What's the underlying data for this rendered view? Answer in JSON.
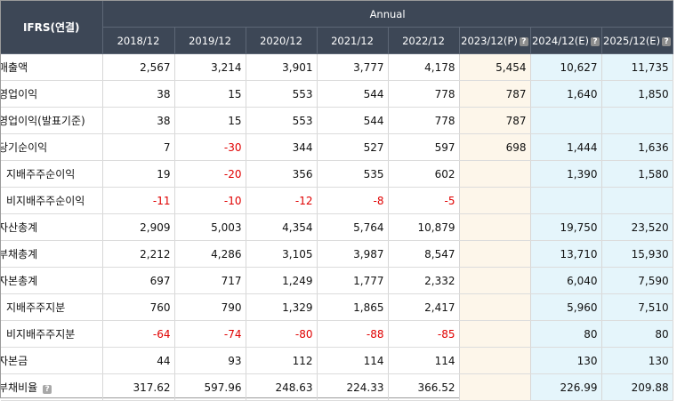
{
  "header": {
    "corner_label": "IFRS(연결)",
    "group_label": "Annual",
    "periods": [
      "2018/12",
      "2019/12",
      "2020/12",
      "2021/12",
      "2022/12",
      "2023/12(P)",
      "2024/12(E)",
      "2025/12(E)"
    ],
    "help_glyph": "?"
  },
  "rows": [
    {
      "label": "매출액",
      "values": [
        "2,567",
        "3,214",
        "3,901",
        "3,777",
        "4,178",
        "5,454",
        "10,627",
        "11,735"
      ]
    },
    {
      "label": "영업이익",
      "values": [
        "38",
        "15",
        "553",
        "544",
        "778",
        "787",
        "1,640",
        "1,850"
      ]
    },
    {
      "label": "영업이익(발표기준)",
      "values": [
        "38",
        "15",
        "553",
        "544",
        "778",
        "787",
        "",
        ""
      ]
    },
    {
      "label": "당기순이익",
      "values": [
        "7",
        "-30",
        "344",
        "527",
        "597",
        "698",
        "1,444",
        "1,636"
      ]
    },
    {
      "label": "지배주주순이익",
      "values": [
        "19",
        "-20",
        "356",
        "535",
        "602",
        "",
        "1,390",
        "1,580"
      ]
    },
    {
      "label": "비지배주주순이익",
      "values": [
        "-11",
        "-10",
        "-12",
        "-8",
        "-5",
        "",
        "",
        ""
      ]
    },
    {
      "label": "자산총계",
      "values": [
        "2,909",
        "5,003",
        "4,354",
        "5,764",
        "10,879",
        "",
        "19,750",
        "23,520"
      ]
    },
    {
      "label": "부채총계",
      "values": [
        "2,212",
        "4,286",
        "3,105",
        "3,987",
        "8,547",
        "",
        "13,710",
        "15,930"
      ]
    },
    {
      "label": "자본총계",
      "values": [
        "697",
        "717",
        "1,249",
        "1,777",
        "2,332",
        "",
        "6,040",
        "7,590"
      ]
    },
    {
      "label": "지배주주지분",
      "values": [
        "760",
        "790",
        "1,329",
        "1,865",
        "2,417",
        "",
        "5,960",
        "7,510"
      ]
    },
    {
      "label": "비지배주주지분",
      "values": [
        "-64",
        "-74",
        "-80",
        "-88",
        "-85",
        "",
        "80",
        "80"
      ]
    },
    {
      "label": "자본금",
      "values": [
        "44",
        "93",
        "112",
        "114",
        "114",
        "",
        "130",
        "130"
      ]
    },
    {
      "label": "부채비율",
      "values": [
        "317.62",
        "597.96",
        "248.63",
        "224.33",
        "366.52",
        "",
        "226.99",
        "209.88"
      ]
    }
  ],
  "colors": {
    "header_bg": "#3d4756",
    "provisional_bg": "#fdf6ea",
    "estimate_bg": "#e5f5fb",
    "negative": "#e00000"
  }
}
